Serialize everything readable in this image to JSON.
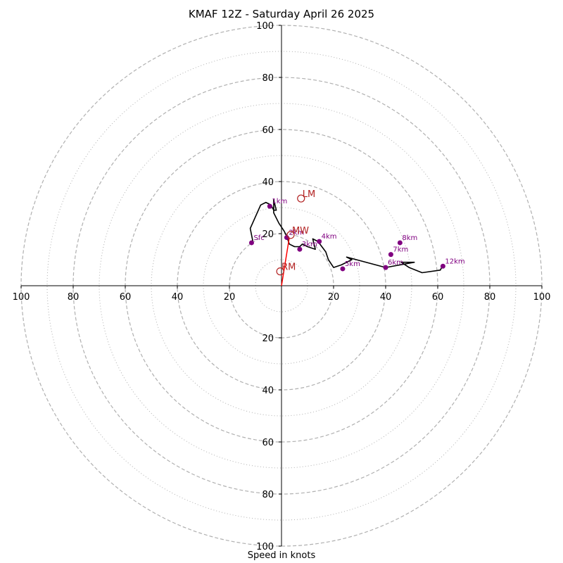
{
  "chart_data": {
    "type": "scatter",
    "title": "KMAF 12Z - Saturday April 26 2025",
    "xlabel": "Speed in knots",
    "ylabel": "",
    "xlim": [
      -100,
      100
    ],
    "ylim": [
      -100,
      100
    ],
    "rings": {
      "dashed": [
        20,
        40,
        60,
        80,
        100
      ],
      "dotted": [
        10,
        30,
        50,
        70,
        90
      ]
    },
    "x_tick_labels": [
      "100",
      "80",
      "60",
      "40",
      "20",
      "20",
      "40",
      "60",
      "80",
      "100"
    ],
    "x_tick_values": [
      -100,
      -80,
      -60,
      -40,
      -20,
      20,
      40,
      60,
      80,
      100
    ],
    "y_tick_labels": [
      "100",
      "80",
      "60",
      "40",
      "20",
      "20",
      "40",
      "60",
      "80",
      "100"
    ],
    "y_tick_values": [
      100,
      80,
      60,
      40,
      20,
      -20,
      -40,
      -60,
      -80,
      -100
    ],
    "colors": {
      "hodograph": "#000000",
      "height_marker": "#800080",
      "storm_motion": "#b22222",
      "ring": "#b0b0b0"
    },
    "hodograph": [
      [
        -11,
        17
      ],
      [
        -12,
        22
      ],
      [
        -8,
        31
      ],
      [
        -6,
        32
      ],
      [
        -4,
        31
      ],
      [
        -3,
        29
      ],
      [
        -2,
        29
      ],
      [
        -3,
        33
      ],
      [
        -3,
        28
      ],
      [
        -1,
        24
      ],
      [
        1,
        21
      ],
      [
        2,
        19
      ],
      [
        3,
        16
      ],
      [
        5,
        15
      ],
      [
        7,
        15
      ],
      [
        8,
        16
      ],
      [
        10,
        15
      ],
      [
        13,
        14
      ],
      [
        12,
        18
      ],
      [
        14,
        17
      ],
      [
        17,
        13
      ],
      [
        18,
        10
      ],
      [
        20,
        7
      ],
      [
        23,
        8
      ],
      [
        27,
        10
      ],
      [
        25,
        11
      ],
      [
        40,
        7
      ],
      [
        51,
        9
      ],
      [
        46,
        9
      ],
      [
        49,
        7
      ],
      [
        54,
        5
      ],
      [
        61,
        6
      ],
      [
        62,
        8
      ]
    ],
    "height_points": [
      {
        "label": "Sfc",
        "x": -11.5,
        "y": 16.5
      },
      {
        "label": "1km",
        "x": -4.5,
        "y": 30.5
      },
      {
        "label": "2km",
        "x": 2.0,
        "y": 18.5
      },
      {
        "label": "3km",
        "x": 7.0,
        "y": 14.0
      },
      {
        "label": "4km",
        "x": 14.5,
        "y": 17.0
      },
      {
        "label": "5km",
        "x": 23.5,
        "y": 6.5
      },
      {
        "label": "6km",
        "x": 40.0,
        "y": 7.0
      },
      {
        "label": "7km",
        "x": 42.0,
        "y": 12.0
      },
      {
        "label": "8km",
        "x": 45.5,
        "y": 16.5
      },
      {
        "label": "12km",
        "x": 62.0,
        "y": 7.5
      }
    ],
    "storm_motion": [
      {
        "label": "RM",
        "x": -0.5,
        "y": 5.5
      },
      {
        "label": "LM",
        "x": 7.5,
        "y": 33.5
      },
      {
        "label": "MW",
        "x": 3.5,
        "y": 19.5
      }
    ],
    "shear_vector": {
      "from": [
        0,
        0
      ],
      "to": [
        3.0,
        18.5
      ]
    }
  }
}
